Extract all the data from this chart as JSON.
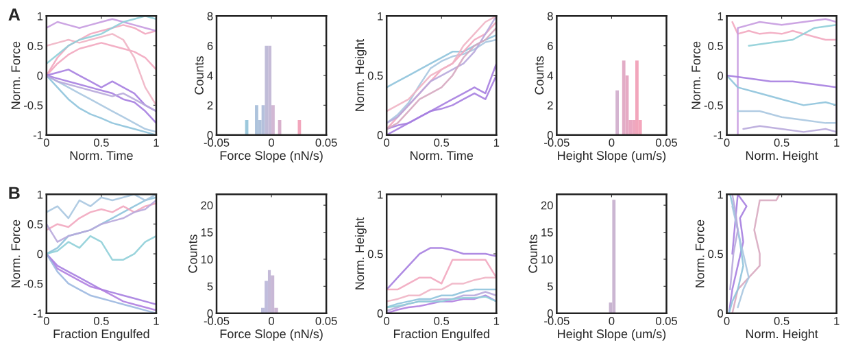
{
  "chart_data": [
    {
      "type": "line",
      "xlabel": "Norm. Time",
      "ylabel": "Norm. Force",
      "annotations": [
        "A"
      ],
      "xlim": [
        0,
        1
      ],
      "ylim": [
        -1,
        1
      ],
      "xticks": [
        0,
        0.5,
        1
      ],
      "yticks": [
        -1,
        -0.5,
        0,
        0.5,
        1
      ],
      "x": [
        0,
        0.1,
        0.2,
        0.3,
        0.4,
        0.5,
        0.6,
        0.7,
        0.8,
        0.9,
        1
      ],
      "series": [
        {
          "color": "#f2a7bf",
          "values": [
            0,
            0.3,
            0.5,
            0.6,
            0.7,
            0.75,
            0.8,
            0.85,
            0.8,
            0.7,
            0.75
          ]
        },
        {
          "color": "#f2a7bf",
          "values": [
            0,
            0.2,
            0.35,
            0.45,
            0.5,
            0.55,
            0.5,
            0.45,
            0.4,
            0.3,
            0.1
          ]
        },
        {
          "color": "#c79be0",
          "values": [
            0.8,
            0.9,
            0.85,
            0.8,
            0.85,
            0.9,
            0.95,
            0.9,
            0.85,
            0.8,
            0.75
          ]
        },
        {
          "color": "#a9c6e0",
          "values": [
            0,
            -0.1,
            -0.2,
            -0.3,
            -0.4,
            -0.5,
            -0.6,
            -0.7,
            -0.8,
            -0.9,
            -0.95
          ]
        },
        {
          "color": "#8ec3dc",
          "values": [
            0,
            -0.2,
            -0.4,
            -0.55,
            -0.65,
            -0.72,
            -0.8,
            -0.85,
            -0.9,
            -0.95,
            -1
          ]
        },
        {
          "color": "#a67ee0",
          "values": [
            0,
            -0.05,
            -0.1,
            -0.15,
            -0.2,
            -0.25,
            -0.3,
            -0.4,
            -0.45,
            -0.6,
            -0.8
          ]
        },
        {
          "color": "#a67ee0",
          "values": [
            0,
            0.05,
            0.1,
            0,
            -0.1,
            -0.2,
            -0.1,
            -0.2,
            -0.3,
            -0.5,
            -0.6
          ]
        },
        {
          "color": "#b8a8dc",
          "values": [
            0,
            -0.1,
            -0.15,
            -0.2,
            -0.25,
            -0.3,
            -0.35,
            -0.3,
            -0.4,
            -0.5,
            -0.6
          ]
        },
        {
          "color": "#f0b4c4",
          "values": [
            0.5,
            0.55,
            0.6,
            0.55,
            0.6,
            0.65,
            0.7,
            0.6,
            0.3,
            -0.2,
            -0.5
          ]
        },
        {
          "color": "#8fcfd8",
          "values": [
            0.2,
            0.35,
            0.5,
            0.6,
            0.65,
            0.7,
            0.8,
            0.9,
            0.95,
            1,
            0.95
          ]
        }
      ]
    },
    {
      "type": "histogram",
      "xlabel": "Force Slope (nN/s)",
      "ylabel": "Counts",
      "xlim": [
        -0.05,
        0.05
      ],
      "ylim": [
        0,
        8
      ],
      "xticks": [
        -0.05,
        0,
        0.05
      ],
      "yticks": [
        0,
        2,
        4,
        6,
        8
      ],
      "bins": [
        -0.024,
        -0.021,
        -0.018,
        -0.015,
        -0.012,
        -0.009,
        -0.006,
        -0.003,
        0,
        0.003,
        0.006,
        0.009,
        0.012,
        0.015,
        0.018,
        0.021,
        0.024,
        0.027
      ],
      "values": [
        1,
        0,
        0,
        2,
        1,
        2,
        6,
        6,
        2,
        0,
        1,
        0,
        0,
        0,
        0,
        0,
        1
      ],
      "colors": [
        "#9cc8dc",
        "#a6c4dc",
        "#a6c4dc",
        "#adc3dc",
        "#b0c2dc",
        "#b4c0dc",
        "#c0bcd8",
        "#c6bcd8",
        "#d2b8d4",
        "#d6b4d0",
        "#d8b0cc",
        "#e0acc8",
        "#e4aac6",
        "#e8a8c4",
        "#eca8c2",
        "#eea8c0",
        "#f2a6bc"
      ]
    },
    {
      "type": "line",
      "xlabel": "Norm. Time",
      "ylabel": "Norm. Height",
      "xlim": [
        0,
        1
      ],
      "ylim": [
        0,
        1
      ],
      "xticks": [
        0,
        0.5,
        1
      ],
      "yticks": [
        0,
        0.5,
        1
      ],
      "x": [
        0,
        0.1,
        0.2,
        0.3,
        0.4,
        0.5,
        0.6,
        0.7,
        0.8,
        0.9,
        1
      ],
      "series": [
        {
          "color": "#8ec3dc",
          "values": [
            0.4,
            0.45,
            0.5,
            0.55,
            0.6,
            0.65,
            0.7,
            0.7,
            0.75,
            0.8,
            0.84
          ]
        },
        {
          "color": "#a9c6e0",
          "values": [
            0.1,
            0.17,
            0.27,
            0.42,
            0.56,
            0.62,
            0.66,
            0.68,
            0.72,
            0.78,
            0.8
          ]
        },
        {
          "color": "#f2a7bf",
          "values": [
            0.05,
            0.15,
            0.25,
            0.35,
            0.45,
            0.55,
            0.6,
            0.7,
            0.8,
            0.85,
            0.95
          ]
        },
        {
          "color": "#a67ee0",
          "values": [
            0,
            0.05,
            0.1,
            0.15,
            0.2,
            0.22,
            0.25,
            0.3,
            0.35,
            0.3,
            0.5
          ]
        },
        {
          "color": "#a67ee0",
          "values": [
            0.05,
            0.08,
            0.1,
            0.15,
            0.2,
            0.25,
            0.3,
            0.35,
            0.4,
            0.35,
            0.6
          ]
        },
        {
          "color": "#b8a8dc",
          "values": [
            0.1,
            0.15,
            0.25,
            0.35,
            0.45,
            0.5,
            0.55,
            0.6,
            0.7,
            0.85,
            1
          ]
        },
        {
          "color": "#f0b4c4",
          "values": [
            0.2,
            0.25,
            0.3,
            0.4,
            0.5,
            0.55,
            0.6,
            0.75,
            0.85,
            0.95,
            1
          ]
        },
        {
          "color": "#d6a8c0",
          "values": [
            0.05,
            0.1,
            0.2,
            0.3,
            0.35,
            0.4,
            0.5,
            0.65,
            0.75,
            0.8,
            0.9
          ]
        }
      ]
    },
    {
      "type": "histogram",
      "xlabel": "Height Slope (um/s)",
      "ylabel": "Counts",
      "xlim": [
        -0.05,
        0.05
      ],
      "ylim": [
        0,
        8
      ],
      "xticks": [
        -0.05,
        0,
        0.05
      ],
      "yticks": [
        0,
        2,
        4,
        6,
        8
      ],
      "bins": [
        0.0036,
        0.0066,
        0.0096,
        0.0126,
        0.0156,
        0.0186,
        0.0216,
        0.0246,
        0.0276
      ],
      "values": [
        3,
        0,
        5,
        4,
        1,
        1,
        5,
        1
      ],
      "colors": [
        "#d4b4d0",
        "#dcb0cc",
        "#e2acc6",
        "#e6aac4",
        "#eaa8c2",
        "#eea8c0",
        "#f2a6bc",
        "#f4a6bc"
      ]
    },
    {
      "type": "line",
      "xlabel": "Norm. Height",
      "ylabel": "Norm. Force",
      "xlim": [
        0,
        1
      ],
      "ylim": [
        -1,
        1
      ],
      "xticks": [
        0,
        0.5,
        1
      ],
      "yticks": [
        -1,
        -0.5,
        0,
        0.5,
        1
      ],
      "series": [
        {
          "color": "#f2a7bf",
          "x": [
            0.05,
            0.1,
            0.2,
            0.3,
            0.4,
            0.5,
            0.6,
            0.7,
            0.8,
            0.9,
            1
          ],
          "values": [
            0.9,
            0.7,
            0.75,
            0.7,
            0.72,
            0.7,
            0.75,
            0.7,
            0.65,
            0.6,
            0.6
          ]
        },
        {
          "color": "#c79be0",
          "x": [
            0.1,
            0.1,
            0.2,
            0.3,
            0.5,
            0.7,
            0.9,
            1,
            1
          ],
          "values": [
            -1,
            0.8,
            0.85,
            0.9,
            0.85,
            0.9,
            0.95,
            0.9,
            -1
          ]
        },
        {
          "color": "#8ec3dc",
          "x": [
            0,
            0.1,
            0.3,
            0.5,
            0.7,
            0.9,
            1
          ],
          "values": [
            0,
            -0.2,
            -0.3,
            -0.4,
            -0.5,
            -0.45,
            -0.5
          ]
        },
        {
          "color": "#a9c6e0",
          "x": [
            0.1,
            0.3,
            0.5,
            0.7,
            0.9,
            1
          ],
          "values": [
            -0.6,
            -0.6,
            -0.7,
            -0.75,
            -0.8,
            -0.8
          ]
        },
        {
          "color": "#a67ee0",
          "x": [
            0,
            0.2,
            0.4,
            0.6,
            0.8,
            1
          ],
          "values": [
            0,
            -0.05,
            -0.1,
            -0.1,
            -0.15,
            -0.2
          ]
        },
        {
          "color": "#8fcfd8",
          "x": [
            0.2,
            0.4,
            0.6,
            0.8,
            1
          ],
          "values": [
            0.5,
            0.55,
            0.6,
            0.8,
            0.85
          ]
        },
        {
          "color": "#b8a8dc",
          "x": [
            0.15,
            0.3,
            0.5,
            0.7,
            0.9,
            1
          ],
          "values": [
            -0.9,
            -0.85,
            -0.9,
            -0.95,
            -0.9,
            -0.95
          ]
        }
      ]
    },
    {
      "type": "line",
      "xlabel": "Fraction Engulfed",
      "ylabel": "Norm. Force",
      "annotations": [
        "B"
      ],
      "xlim": [
        0,
        1
      ],
      "ylim": [
        -1,
        1
      ],
      "xticks": [
        0,
        0.5,
        1
      ],
      "yticks": [
        -1,
        -0.5,
        0,
        0.5,
        1
      ],
      "x": [
        0,
        0.1,
        0.2,
        0.3,
        0.4,
        0.5,
        0.6,
        0.7,
        0.8,
        0.9,
        1
      ],
      "series": [
        {
          "color": "#8ec3dc",
          "values": [
            0,
            0.1,
            0.3,
            0.35,
            0.4,
            0.5,
            0.6,
            0.7,
            0.8,
            0.9,
            0.95
          ]
        },
        {
          "color": "#a9c6e0",
          "values": [
            0.7,
            0.8,
            0.6,
            0.9,
            0.8,
            0.95,
            0.9,
            0.95,
            1,
            0.9,
            1
          ]
        },
        {
          "color": "#a67ee0",
          "values": [
            0,
            -0.2,
            -0.3,
            -0.4,
            -0.5,
            -0.6,
            -0.65,
            -0.7,
            -0.75,
            -0.8,
            -0.85
          ]
        },
        {
          "color": "#b07ee0",
          "values": [
            0,
            -0.25,
            -0.35,
            -0.45,
            -0.55,
            -0.6,
            -0.7,
            -0.8,
            -0.85,
            -0.9,
            -0.95
          ]
        },
        {
          "color": "#f2a7bf",
          "values": [
            0.4,
            0.5,
            0.45,
            0.6,
            0.7,
            0.75,
            0.7,
            0.8,
            0.7,
            0.8,
            0.85
          ]
        },
        {
          "color": "#8fcfd8",
          "values": [
            0,
            0.05,
            0.2,
            0.1,
            0.3,
            0.2,
            -0.1,
            -0.1,
            0,
            0.2,
            0.3
          ]
        },
        {
          "color": "#b8a8dc",
          "values": [
            0.5,
            0.2,
            0.3,
            0.35,
            0.4,
            0.5,
            0.55,
            0.6,
            0.7,
            0.75,
            0.9
          ]
        },
        {
          "color": "#9cb8e0",
          "values": [
            0,
            -0.3,
            -0.5,
            -0.6,
            -0.7,
            -0.75,
            -0.8,
            -0.85,
            -0.9,
            -0.95,
            -1
          ]
        }
      ]
    },
    {
      "type": "histogram",
      "xlabel": "Force Slope (nN/s)",
      "ylabel": "Counts",
      "xlim": [
        -0.05,
        0.05
      ],
      "ylim": [
        0,
        22
      ],
      "xticks": [
        -0.05,
        0,
        0.05
      ],
      "yticks": [
        0,
        5,
        10,
        15,
        20
      ],
      "bins": [
        -0.0094,
        -0.0062,
        -0.0032,
        -0.0006,
        0.0026,
        0.006
      ],
      "values": [
        1,
        6,
        8,
        7,
        1
      ],
      "colors": [
        "#bcbcdc",
        "#c0bcdc",
        "#c4bad8",
        "#c8b8d6",
        "#ccb6d4"
      ]
    },
    {
      "type": "line",
      "xlabel": "Fraction Engulfed",
      "ylabel": "Norm. Height",
      "xlim": [
        0,
        1
      ],
      "ylim": [
        0,
        1
      ],
      "xticks": [
        0,
        0.5,
        1
      ],
      "yticks": [
        0,
        0.5,
        1
      ],
      "x": [
        0,
        0.1,
        0.2,
        0.3,
        0.4,
        0.5,
        0.6,
        0.7,
        0.8,
        0.9,
        1
      ],
      "series": [
        {
          "color": "#a67ee0",
          "values": [
            0.2,
            0.3,
            0.4,
            0.5,
            0.55,
            0.55,
            0.53,
            0.5,
            0.5,
            0.5,
            0.48
          ]
        },
        {
          "color": "#f2a7bf",
          "values": [
            0.2,
            0.2,
            0.25,
            0.3,
            0.3,
            0.25,
            0.45,
            0.45,
            0.45,
            0.45,
            0.3
          ]
        },
        {
          "color": "#f0b4c4",
          "values": [
            0.1,
            0.12,
            0.15,
            0.15,
            0.2,
            0.2,
            0.25,
            0.25,
            0.28,
            0.3,
            0.3
          ]
        },
        {
          "color": "#8ec3dc",
          "values": [
            0.05,
            0.08,
            0.1,
            0.12,
            0.12,
            0.15,
            0.15,
            0.18,
            0.2,
            0.2,
            0.2
          ]
        },
        {
          "color": "#b8a8dc",
          "values": [
            0.02,
            0.05,
            0.08,
            0.1,
            0.1,
            0.12,
            0.12,
            0.15,
            0.15,
            0.18,
            0.15
          ]
        },
        {
          "color": "#b07ee0",
          "values": [
            0,
            0.03,
            0.05,
            0.06,
            0.08,
            0.1,
            0.1,
            0.12,
            0.12,
            0.15,
            0.1
          ]
        },
        {
          "color": "#8fcfd8",
          "values": [
            0.05,
            0.06,
            0.08,
            0.1,
            0.1,
            0.1,
            0.12,
            0.13,
            0.13,
            0.14,
            0.1
          ]
        }
      ]
    },
    {
      "type": "histogram",
      "xlabel": "Height Slope (um/s)",
      "ylabel": "Counts",
      "xlim": [
        -0.05,
        0.05
      ],
      "ylim": [
        0,
        22
      ],
      "xticks": [
        -0.05,
        0,
        0.05
      ],
      "yticks": [
        0,
        5,
        10,
        15,
        20
      ],
      "bins": [
        -0.0024,
        0.0006,
        0.0036
      ],
      "values": [
        2,
        21
      ],
      "colors": [
        "#c8b4d0",
        "#cbb6d2"
      ]
    },
    {
      "type": "line",
      "xlabel": "Norm. Height",
      "ylabel": "Norm. Force",
      "xlim": [
        0,
        1
      ],
      "ylim": [
        0,
        1
      ],
      "xticks": [
        0,
        0.5,
        1
      ],
      "yticks": [
        0,
        0.5,
        1
      ],
      "series": [
        {
          "color": "#d8aac0",
          "x": [
            0.05,
            0.1,
            0.2,
            0.25,
            0.3,
            0.3,
            0.25,
            0.3,
            0.45,
            0.48
          ],
          "values": [
            0,
            0.2,
            0.3,
            0.35,
            0.4,
            0.5,
            0.7,
            0.95,
            0.95,
            1
          ]
        },
        {
          "color": "#a67ee0",
          "x": [
            0.02,
            0.05,
            0.1,
            0.15,
            0.12,
            0.18,
            0.1,
            0.05
          ],
          "values": [
            0,
            0.2,
            0.4,
            0.6,
            0.8,
            0.9,
            1,
            0.5
          ]
        },
        {
          "color": "#8ec3dc",
          "x": [
            0.03,
            0.08,
            0.12,
            0.15,
            0.1,
            0.05,
            0.02
          ],
          "values": [
            1,
            0.8,
            0.6,
            0.4,
            0.2,
            0.1,
            0
          ]
        },
        {
          "color": "#a9c6e0",
          "x": [
            0.05,
            0.1,
            0.15,
            0.2,
            0.15,
            0.1
          ],
          "values": [
            0.9,
            0.7,
            0.5,
            0.3,
            0.2,
            0.05
          ]
        },
        {
          "color": "#b8a8dc",
          "x": [
            0.03,
            0.06,
            0.1,
            0.08,
            0.05
          ],
          "values": [
            0.2,
            0.5,
            0.7,
            0.85,
            1
          ]
        }
      ]
    }
  ]
}
